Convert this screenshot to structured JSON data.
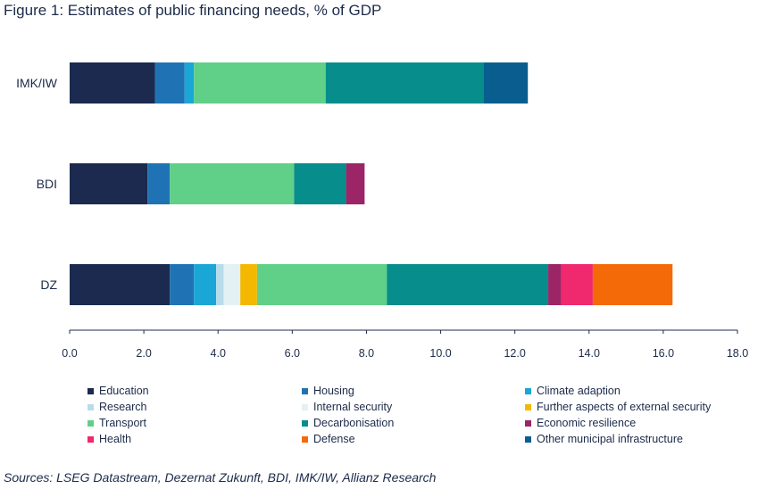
{
  "title": "Figure 1: Estimates of public financing needs, % of GDP",
  "source": "Sources: LSEG Datastream, Dezernat Zukunft, BDI, IMK/IW, Allianz Research",
  "chart_data": {
    "type": "bar",
    "orientation": "horizontal",
    "stacked": true,
    "categories": [
      "IMK/IW",
      "BDI",
      "DZ"
    ],
    "xlim": [
      0,
      18
    ],
    "xticks": [
      "0.0",
      "2.0",
      "4.0",
      "6.0",
      "8.0",
      "10.0",
      "12.0",
      "14.0",
      "16.0",
      "18.0"
    ],
    "legend_position": "bottom",
    "grid": false,
    "series": [
      {
        "name": "Education",
        "color": "#1b2a4e",
        "values": [
          2.3,
          2.1,
          2.7
        ]
      },
      {
        "name": "Housing",
        "color": "#1f73b5",
        "values": [
          0.8,
          0.6,
          0.65
        ]
      },
      {
        "name": "Climate adaption",
        "color": "#1aa6d6",
        "values": [
          0.25,
          0,
          0.6
        ]
      },
      {
        "name": "Research",
        "color": "#b9dcea",
        "values": [
          0,
          0,
          0.2
        ]
      },
      {
        "name": "Internal security",
        "color": "#e4f1f4",
        "values": [
          0,
          0,
          0.45
        ]
      },
      {
        "name": "Further aspects of external security",
        "color": "#f5b800",
        "values": [
          0,
          0,
          0.45
        ]
      },
      {
        "name": "Transport",
        "color": "#60cf87",
        "values": [
          3.55,
          3.35,
          3.5
        ]
      },
      {
        "name": "Decarbonisation",
        "color": "#078d8b",
        "values": [
          4.25,
          1.4,
          4.35
        ]
      },
      {
        "name": "Economic resilience",
        "color": "#9b2566",
        "values": [
          0,
          0.5,
          0.35
        ]
      },
      {
        "name": "Health",
        "color": "#f0286e",
        "values": [
          0,
          0,
          0.85
        ]
      },
      {
        "name": "Defense",
        "color": "#f46a08",
        "values": [
          0,
          0,
          2.15
        ]
      },
      {
        "name": "Other municipal infrastructure",
        "color": "#095e8f",
        "values": [
          1.2,
          0,
          0
        ]
      }
    ]
  }
}
